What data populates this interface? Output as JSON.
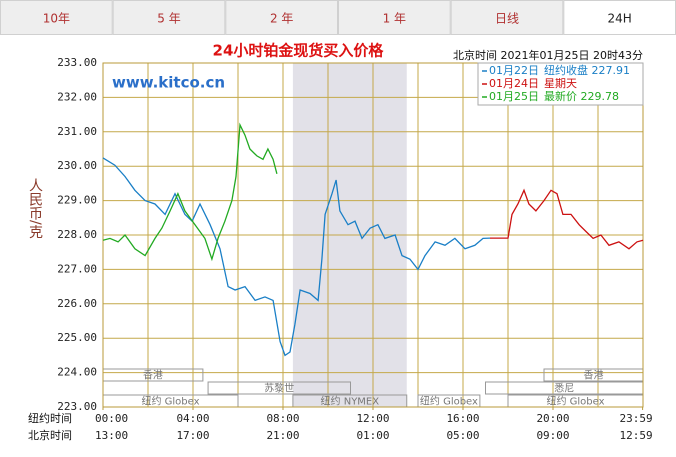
{
  "tabs": [
    "10年",
    "5 年",
    "2 年",
    "1 年",
    "日线",
    "24H"
  ],
  "active_tab": 5,
  "chart_data": {
    "type": "line",
    "title": "24小时铂金现货买入价格",
    "subtitle": "北京时间  2021年01月25日 20时43分",
    "watermark": "www.kitco.cn",
    "ylabel": "人民币/克",
    "xlim": [
      0,
      24
    ],
    "ylim": [
      223,
      233
    ],
    "yticks": [
      {
        "value": 223,
        "label": "223.00"
      },
      {
        "value": 224,
        "label": "224.00"
      },
      {
        "value": 225,
        "label": "225.00"
      },
      {
        "value": 226,
        "label": "226.00"
      },
      {
        "value": 227,
        "label": "227.00"
      },
      {
        "value": 228,
        "label": "228.00"
      },
      {
        "value": 229,
        "label": "229.00"
      },
      {
        "value": 230,
        "label": "230.00"
      },
      {
        "value": 231,
        "label": "231.00"
      },
      {
        "value": 232,
        "label": "232.00"
      },
      {
        "value": 233,
        "label": "233.00"
      }
    ],
    "x_grid": [
      2,
      4,
      6,
      8,
      10,
      12,
      14,
      16,
      18,
      20,
      22
    ],
    "x_axis_rows": [
      "纽约时间",
      "北京时间"
    ],
    "xticks": [
      {
        "value": 0,
        "label": "00:00"
      },
      {
        "value": 4,
        "label": "04:00"
      },
      {
        "value": 8,
        "label": "08:00"
      },
      {
        "value": 12,
        "label": "12:00"
      },
      {
        "value": 16,
        "label": "16:00"
      },
      {
        "value": 20,
        "label": "20:00"
      },
      {
        "value": 23.983,
        "label": "23:59"
      }
    ],
    "xtick_labels_beijing": [
      "13:00",
      "17:00",
      "21:00",
      "01:00",
      "05:00",
      "09:00",
      "12:59"
    ],
    "shaded": [
      8.44,
      13.5
    ],
    "session_rows": [
      [
        {
          "name": "香港",
          "start": 0,
          "end": 4.44
        },
        {
          "name": "香港",
          "start": 19.6,
          "end": 24
        }
      ],
      [
        {
          "name": "苏黎世",
          "start": 4.67,
          "end": 11
        },
        {
          "name": "悉尼",
          "start": 17,
          "end": 24
        }
      ],
      [
        {
          "name": "纽约 Globex",
          "start": 0,
          "end": 6
        },
        {
          "name": "纽约 NYMEX",
          "start": 8.44,
          "end": 13.5
        },
        {
          "name": "纽约 Globex",
          "start": 14,
          "end": 16.75
        },
        {
          "name": "纽约 Globex",
          "start": 18,
          "end": 24
        }
      ]
    ],
    "legend_notes": [
      "纽约收盘 227.91",
      "星期天",
      "最新价 229.78"
    ],
    "series": [
      {
        "name": "01月22日",
        "color": "#1a7fc6",
        "x": [
          0,
          0.53,
          0.98,
          1.42,
          1.87,
          2.31,
          2.76,
          3.2,
          3.64,
          3.96,
          4.31,
          4.76,
          5.2,
          5.56,
          5.87,
          6.31,
          6.76,
          7.2,
          7.56,
          7.87,
          8.09,
          8.31,
          8.53,
          8.76,
          9.2,
          9.56,
          9.73,
          9.87,
          10.18,
          10.36,
          10.53,
          10.89,
          11.2,
          11.51,
          11.87,
          12.22,
          12.53,
          12.98,
          13.29,
          13.64,
          14,
          14.31,
          14.76,
          15.2,
          15.64,
          16.09,
          16.53,
          16.89,
          17.2
        ],
        "values": [
          230.24,
          230.03,
          229.7,
          229.3,
          229.0,
          228.9,
          228.6,
          229.2,
          228.6,
          228.4,
          228.9,
          228.3,
          227.6,
          226.5,
          226.4,
          226.5,
          226.1,
          226.2,
          226.1,
          224.9,
          224.5,
          224.6,
          225.4,
          226.4,
          226.3,
          226.1,
          227.3,
          228.6,
          229.2,
          229.6,
          228.7,
          228.3,
          228.4,
          227.9,
          228.2,
          228.3,
          227.9,
          228.0,
          227.4,
          227.3,
          227.0,
          227.4,
          227.8,
          227.7,
          227.9,
          227.6,
          227.7,
          227.9,
          227.91
        ]
      },
      {
        "name": "01月24日",
        "color": "#cc1111",
        "x": [
          17.2,
          18,
          18.18,
          18.44,
          18.71,
          18.93,
          19.24,
          19.6,
          19.91,
          20.18,
          20.44,
          20.8,
          21.16,
          21.47,
          21.78,
          22.13,
          22.49,
          22.93,
          23.38,
          23.73,
          24
        ],
        "values": [
          227.91,
          227.91,
          228.6,
          228.9,
          229.3,
          228.9,
          228.7,
          229.0,
          229.3,
          229.2,
          228.6,
          228.6,
          228.3,
          228.1,
          227.9,
          228.0,
          227.7,
          227.8,
          227.6,
          227.8,
          227.85
        ]
      },
      {
        "name": "01月25日",
        "color": "#22aa22",
        "x": [
          0,
          0.31,
          0.67,
          0.98,
          1.42,
          1.87,
          2.31,
          2.62,
          2.98,
          3.33,
          3.64,
          4.09,
          4.53,
          4.84,
          5.11,
          5.42,
          5.73,
          5.91,
          6.09,
          6.31,
          6.53,
          6.84,
          7.11,
          7.33,
          7.56,
          7.73
        ],
        "values": [
          227.85,
          227.9,
          227.8,
          228.0,
          227.6,
          227.4,
          227.9,
          228.2,
          228.7,
          229.2,
          228.7,
          228.3,
          227.9,
          227.3,
          227.9,
          228.4,
          229.0,
          229.7,
          231.2,
          230.9,
          230.5,
          230.3,
          230.2,
          230.5,
          230.2,
          229.78
        ]
      }
    ]
  }
}
